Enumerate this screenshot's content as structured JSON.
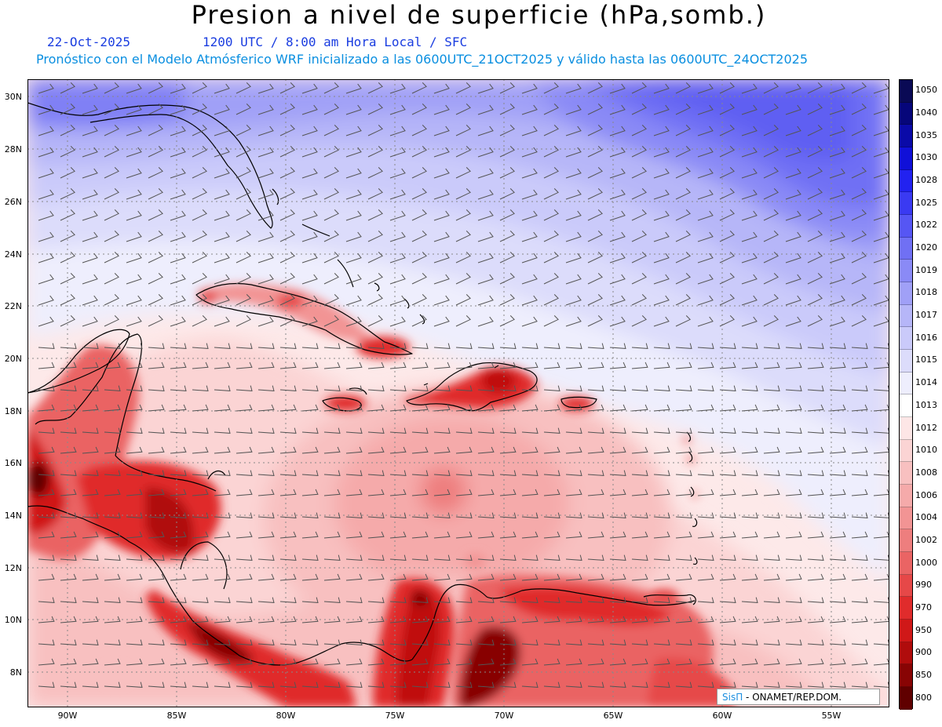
{
  "header": {
    "title": "Presion a nivel de superficie (hPa,somb.)",
    "date": "22-Oct-2025",
    "time_info": "1200 UTC / 8:00 am Hora Local / SFC",
    "model_info": "Pronóstico con el Modelo Atmósferico WRF inicializado a las 0600UTC_21OCT2025 y válido hasta las  0600UTC_24OCT2025"
  },
  "map": {
    "lat_labels": [
      "30N",
      "28N",
      "26N",
      "24N",
      "22N",
      "20N",
      "18N",
      "16N",
      "14N",
      "12N",
      "10N",
      "8N"
    ],
    "lon_labels": [
      "90W",
      "85W",
      "80W",
      "75W",
      "70W",
      "65W",
      "60W",
      "55W"
    ],
    "lon_range": [
      -92,
      -52.5
    ],
    "lat_range": [
      6.7,
      30.7
    ]
  },
  "colorbar": {
    "levels": [
      {
        "value": "1050",
        "color": "#0a0a55"
      },
      {
        "value": "1040",
        "color": "#06067a"
      },
      {
        "value": "1035",
        "color": "#0a0aa8"
      },
      {
        "value": "1030",
        "color": "#1010d8"
      },
      {
        "value": "1028",
        "color": "#2222f0"
      },
      {
        "value": "1025",
        "color": "#3a3af2"
      },
      {
        "value": "1022",
        "color": "#5656f4"
      },
      {
        "value": "1020",
        "color": "#7070f4"
      },
      {
        "value": "1019",
        "color": "#8a8af6"
      },
      {
        "value": "1018",
        "color": "#a0a0f7"
      },
      {
        "value": "1017",
        "color": "#b6b6f8"
      },
      {
        "value": "1016",
        "color": "#cacafa"
      },
      {
        "value": "1015",
        "color": "#dcdcfb"
      },
      {
        "value": "1014",
        "color": "#eeeefd"
      },
      {
        "value": "1013",
        "color": "#ffffff"
      },
      {
        "value": "1012",
        "color": "#fde6e6"
      },
      {
        "value": "1010",
        "color": "#fbd4d4"
      },
      {
        "value": "1008",
        "color": "#f8c0c0"
      },
      {
        "value": "1006",
        "color": "#f5aaaa"
      },
      {
        "value": "1004",
        "color": "#f29494"
      },
      {
        "value": "1002",
        "color": "#ee7e7e"
      },
      {
        "value": "1000",
        "color": "#ea6464"
      },
      {
        "value": "990",
        "color": "#e64848"
      },
      {
        "value": "970",
        "color": "#e02c2c"
      },
      {
        "value": "950",
        "color": "#d01818"
      },
      {
        "value": "900",
        "color": "#b00c0c"
      },
      {
        "value": "850",
        "color": "#880404"
      },
      {
        "value": "800",
        "color": "#600000"
      }
    ]
  },
  "credit": {
    "brand": "SisΠ",
    "text": " - ONAMET/REP.DOM."
  }
}
